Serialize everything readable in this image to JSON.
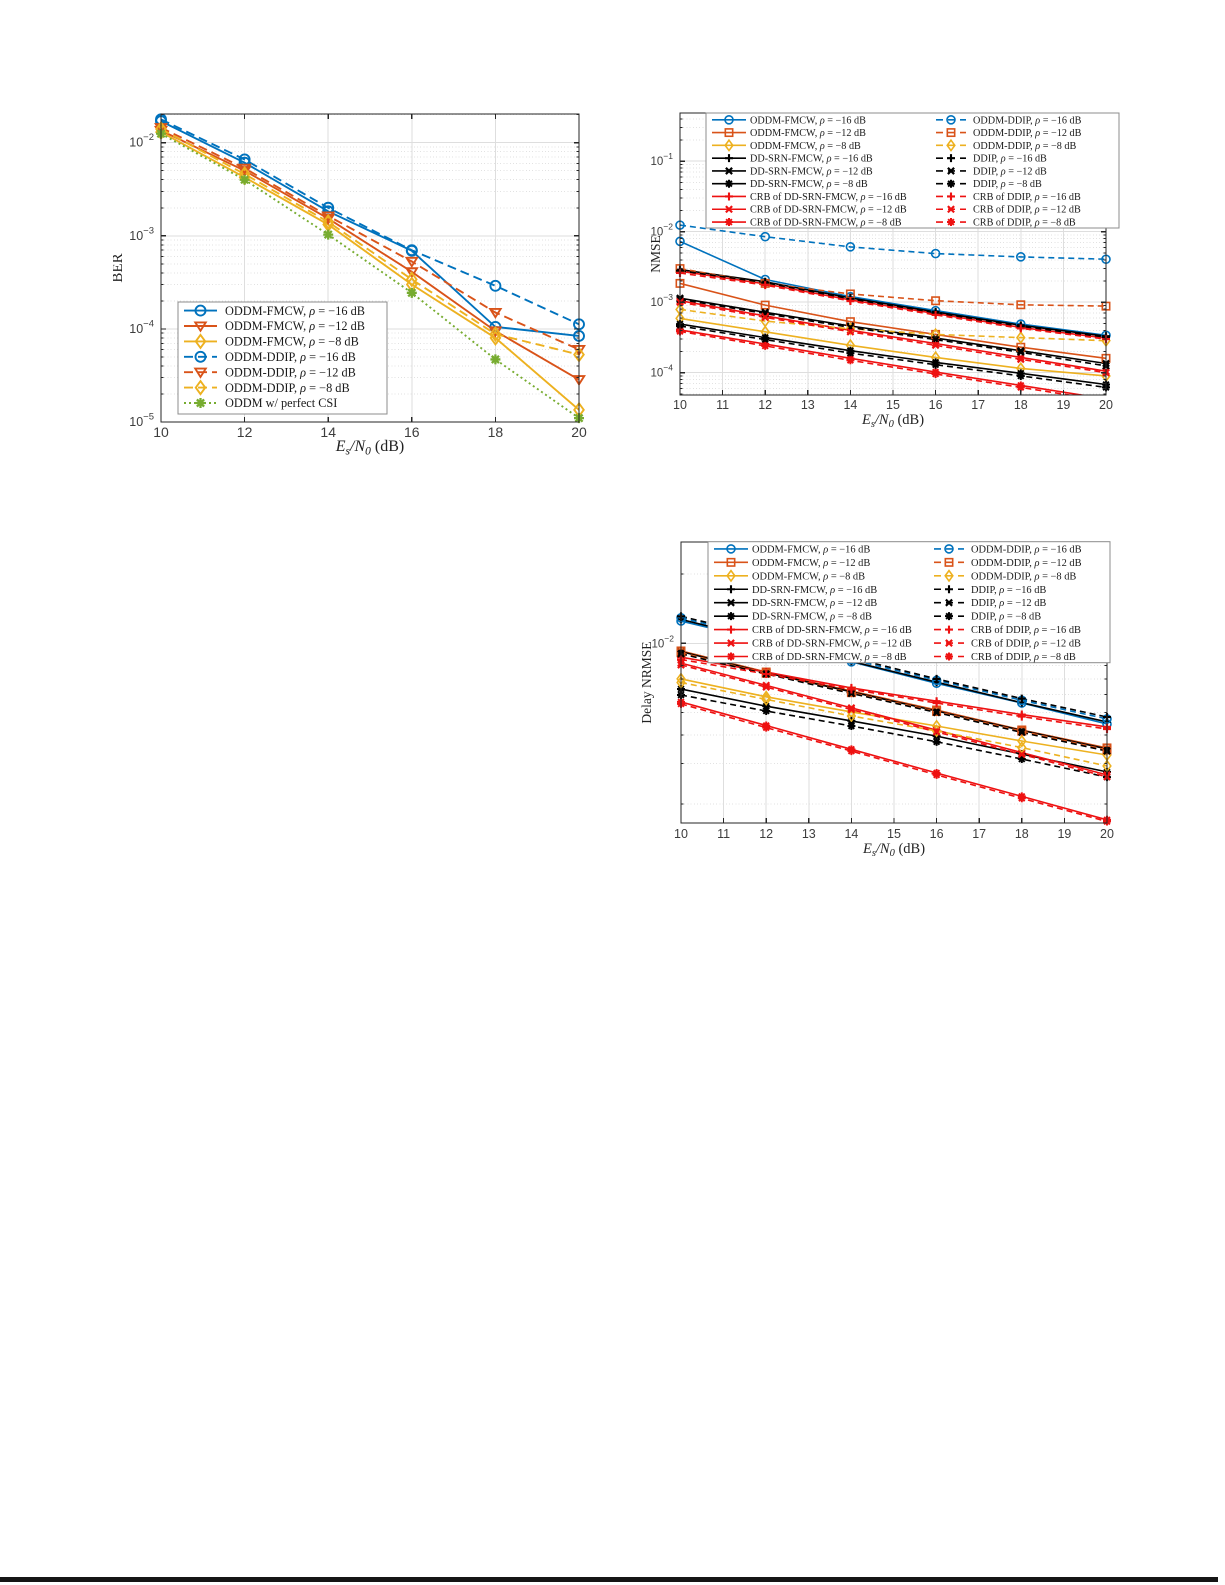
{
  "page": {
    "background": "#ffffff",
    "footer_bar_color": "#151515"
  },
  "palette": {
    "blue": "#0072BD",
    "orange": "#D95319",
    "yellow": "#EDB120",
    "green": "#77AC30",
    "red": "#EE1111",
    "black": "#000000",
    "axis": "#262626",
    "tick_text": "#3d3d3d",
    "grid_major": "#dedede",
    "grid_minor": "#cfcfcf",
    "legend_border": "#8c8c8c"
  },
  "chart_data": [
    {
      "id": "ber",
      "type": "line",
      "title": "",
      "xlabel_math": "E_s/N_0",
      "xlabel_plain": " (dB)",
      "ylabel": "BER",
      "xlim": [
        10,
        20
      ],
      "x_ticks": [
        10,
        12,
        14,
        16,
        18,
        20
      ],
      "ylog_range": [
        -5,
        -1.692
      ],
      "y_labeled_exponents": [
        -2,
        -3,
        -4,
        -5
      ],
      "grid": "on",
      "legend_location": "southwest",
      "legend_columns": 1,
      "x": [
        10,
        12,
        14,
        16,
        18,
        20
      ],
      "series": [
        {
          "name": "ODDM-FMCW, ρ = −16 dB",
          "color": "blue",
          "style": "solid",
          "marker": "circle",
          "values": [
            0.017,
            0.0061,
            0.00183,
            0.00069,
            0.000105,
            8.4e-05
          ]
        },
        {
          "name": "ODDM-FMCW, ρ = −12 dB",
          "color": "orange",
          "style": "solid",
          "marker": "triangle-down",
          "values": [
            0.0135,
            0.005,
            0.00153,
            0.00041,
            9.5e-05,
            2.85e-05
          ]
        },
        {
          "name": "ODDM-FMCW, ρ = −8 dB",
          "color": "yellow",
          "style": "solid",
          "marker": "diamond",
          "values": [
            0.013,
            0.00425,
            0.00132,
            0.0003,
            8e-05,
            1.35e-05
          ]
        },
        {
          "name": "ODDM-DDIP, ρ = −16 dB",
          "color": "blue",
          "style": "dashed",
          "marker": "circle",
          "values": [
            0.0178,
            0.0066,
            0.002,
            0.0007,
            0.00029,
            0.000112
          ]
        },
        {
          "name": "ODDM-DDIP, ρ = −12 dB",
          "color": "orange",
          "style": "dashed",
          "marker": "triangle-down",
          "values": [
            0.0145,
            0.0053,
            0.00163,
            0.00053,
            0.00015,
            6e-05
          ]
        },
        {
          "name": "ODDM-DDIP, ρ = −8 dB",
          "color": "yellow",
          "style": "dashed",
          "marker": "diamond",
          "values": [
            0.014,
            0.0046,
            0.00141,
            0.00034,
            8.8e-05,
            5.3e-05
          ]
        },
        {
          "name": "ODDM w/ perfect CSI",
          "color": "green",
          "style": "dotted",
          "marker": "asterisk",
          "values": [
            0.0125,
            0.004,
            0.00103,
            0.000244,
            4.7e-05,
            1.1e-05
          ]
        }
      ]
    },
    {
      "id": "nmse",
      "type": "line",
      "title": "",
      "xlabel_math": "E_s/N_0",
      "xlabel_plain": " (dB)",
      "ylabel": "NMSE",
      "xlim": [
        10,
        20
      ],
      "x_ticks": [
        10,
        11,
        12,
        13,
        14,
        15,
        16,
        17,
        18,
        19,
        20
      ],
      "ylog_range": [
        -4.316,
        -0.316
      ],
      "y_labeled_exponents": [
        -1,
        -2,
        -3,
        -4
      ],
      "grid": "on",
      "legend_location": "north",
      "legend_columns": 2,
      "x": [
        10,
        12,
        14,
        16,
        18,
        20
      ],
      "series": [
        {
          "name": "ODDM-FMCW, ρ = −16 dB",
          "color": "blue",
          "style": "solid",
          "marker": "circle",
          "values": [
            0.0073,
            0.0021,
            0.0012,
            0.00076,
            0.00049,
            0.00034
          ]
        },
        {
          "name": "ODDM-FMCW, ρ = −12 dB",
          "color": "orange",
          "style": "solid",
          "marker": "square",
          "values": [
            0.00185,
            0.00091,
            0.00053,
            0.00035,
            0.00023,
            0.00016
          ]
        },
        {
          "name": "ODDM-FMCW, ρ = −8 dB",
          "color": "yellow",
          "style": "solid",
          "marker": "diamond",
          "values": [
            0.00059,
            0.00038,
            0.000245,
            0.000165,
            0.000115,
            9e-05
          ]
        },
        {
          "name": "DD-SRN-FMCW, ρ = −16 dB",
          "color": "black",
          "style": "solid",
          "marker": "plus",
          "values": [
            0.0029,
            0.00195,
            0.00115,
            0.00073,
            0.00047,
            0.00033
          ]
        },
        {
          "name": "DD-SRN-FMCW, ρ = −12 dB",
          "color": "black",
          "style": "solid",
          "marker": "x",
          "values": [
            0.00114,
            0.00072,
            0.00046,
            0.00031,
            0.000205,
            0.000135
          ]
        },
        {
          "name": "DD-SRN-FMCW, ρ = −8 dB",
          "color": "black",
          "style": "solid",
          "marker": "asterisk",
          "values": [
            0.00049,
            0.000315,
            0.000205,
            0.00014,
            9.8e-05,
            6.8e-05
          ]
        },
        {
          "name": "CRB of DD-SRN-FMCW, ρ = −16 dB",
          "color": "red",
          "style": "solid",
          "marker": "plus",
          "values": [
            0.00275,
            0.00182,
            0.00108,
            0.00069,
            0.00044,
            0.00031
          ]
        },
        {
          "name": "CRB of DD-SRN-FMCW, ρ = −12 dB",
          "color": "red",
          "style": "solid",
          "marker": "x",
          "values": [
            0.00105,
            0.00064,
            0.0004,
            0.00026,
            0.000165,
            0.000105
          ]
        },
        {
          "name": "CRB of DD-SRN-FMCW, ρ = −8 dB",
          "color": "red",
          "style": "solid",
          "marker": "asterisk",
          "values": [
            0.000405,
            0.000255,
            0.00016,
            0.000102,
            6.6e-05,
            4.25e-05
          ]
        },
        {
          "name": "ODDM-DDIP, ρ = −16 dB",
          "color": "blue",
          "style": "dashed",
          "marker": "circle",
          "values": [
            0.0124,
            0.0085,
            0.0061,
            0.0049,
            0.0044,
            0.00407
          ]
        },
        {
          "name": "ODDM-DDIP, ρ = −12 dB",
          "color": "orange",
          "style": "dashed",
          "marker": "square",
          "values": [
            0.003,
            0.00185,
            0.00131,
            0.00105,
            0.00092,
            0.00088
          ]
        },
        {
          "name": "ODDM-DDIP, ρ = −8 dB",
          "color": "yellow",
          "style": "dashed",
          "marker": "diamond",
          "values": [
            0.00079,
            0.00054,
            0.00042,
            0.00035,
            0.000315,
            0.000285
          ]
        },
        {
          "name": "DDIP, ρ = −16 dB",
          "color": "black",
          "style": "dashed",
          "marker": "plus",
          "values": [
            0.0028,
            0.0019,
            0.00112,
            0.00071,
            0.000455,
            0.00032
          ]
        },
        {
          "name": "DDIP, ρ = −12 dB",
          "color": "black",
          "style": "dashed",
          "marker": "x",
          "values": [
            0.0011,
            0.00069,
            0.00044,
            0.000295,
            0.000195,
            0.000125
          ]
        },
        {
          "name": "DDIP, ρ = −8 dB",
          "color": "black",
          "style": "dashed",
          "marker": "asterisk",
          "values": [
            0.00046,
            0.000295,
            0.00019,
            0.00013,
            9e-05,
            6.2e-05
          ]
        },
        {
          "name": "CRB of DDIP, ρ = −16 dB",
          "color": "red",
          "style": "dashed",
          "marker": "plus",
          "values": [
            0.0026,
            0.00175,
            0.00104,
            0.00066,
            0.000425,
            0.0003
          ]
        },
        {
          "name": "CRB of DDIP, ρ = −12 dB",
          "color": "red",
          "style": "dashed",
          "marker": "x",
          "values": [
            0.001,
            0.00061,
            0.00038,
            0.000245,
            0.000155,
            0.0001
          ]
        },
        {
          "name": "CRB of DDIP, ρ = −8 dB",
          "color": "red",
          "style": "dashed",
          "marker": "asterisk",
          "values": [
            0.000385,
            0.00024,
            0.00015,
            9.6e-05,
            6.2e-05,
            4e-05
          ]
        }
      ]
    },
    {
      "id": "delay-nrmse",
      "type": "line",
      "title": "",
      "xlabel_math": "E_s/N_0",
      "xlabel_plain": " (dB)",
      "ylabel": "Delay NRMSE",
      "xlim": [
        10,
        20
      ],
      "x_ticks": [
        10,
        11,
        12,
        13,
        14,
        15,
        16,
        17,
        18,
        19,
        20
      ],
      "ylog_range": [
        -2.781,
        -1.56
      ],
      "y_labeled_exponents": [
        -2
      ],
      "grid": "on",
      "legend_location": "north",
      "legend_columns": 2,
      "x": [
        10,
        12,
        14,
        16,
        18,
        20
      ],
      "series": [
        {
          "name": "ODDM-FMCW, ρ = −16 dB",
          "color": "blue",
          "style": "solid",
          "marker": "circle",
          "values": [
            0.0125,
            0.0102,
            0.0083,
            0.0067,
            0.0055,
            0.00446
          ]
        },
        {
          "name": "ODDM-FMCW, ρ = −12 dB",
          "color": "orange",
          "style": "solid",
          "marker": "square",
          "values": [
            0.00926,
            0.0075,
            0.0062,
            0.00513,
            0.0042,
            0.00351
          ]
        },
        {
          "name": "ODDM-FMCW, ρ = −8 dB",
          "color": "yellow",
          "style": "solid",
          "marker": "diamond",
          "values": [
            0.007,
            0.00585,
            0.00503,
            0.00437,
            0.00376,
            0.00327
          ]
        },
        {
          "name": "DD-SRN-FMCW, ρ = −16 dB",
          "color": "black",
          "style": "solid",
          "marker": "plus",
          "values": [
            0.0127,
            0.0103,
            0.00835,
            0.00677,
            0.00552,
            0.00455
          ]
        },
        {
          "name": "DD-SRN-FMCW, ρ = −12 dB",
          "color": "black",
          "style": "solid",
          "marker": "x",
          "values": [
            0.0092,
            0.00745,
            0.00615,
            0.00508,
            0.00418,
            0.00347
          ]
        },
        {
          "name": "DD-SRN-FMCW, ρ = −8 dB",
          "color": "black",
          "style": "solid",
          "marker": "asterisk",
          "values": [
            0.00633,
            0.00533,
            0.0046,
            0.00395,
            0.0033,
            0.00276
          ]
        },
        {
          "name": "CRB of DD-SRN-FMCW, ρ = −16 dB",
          "color": "red",
          "style": "solid",
          "marker": "plus",
          "values": [
            0.0087,
            0.0075,
            0.0064,
            0.0056,
            0.0049,
            0.00433
          ]
        },
        {
          "name": "CRB of DD-SRN-FMCW, ρ = −12 dB",
          "color": "red",
          "style": "solid",
          "marker": "x",
          "values": [
            0.0082,
            0.00656,
            0.00524,
            0.00419,
            0.00335,
            0.00268
          ]
        },
        {
          "name": "CRB of DD-SRN-FMCW, ρ = −8 dB",
          "color": "red",
          "style": "solid",
          "marker": "asterisk",
          "values": [
            0.00556,
            0.00439,
            0.00346,
            0.00273,
            0.00216,
            0.00171
          ]
        },
        {
          "name": "ODDM-DDIP, ρ = −16 dB",
          "color": "blue",
          "style": "dashed",
          "marker": "circle",
          "values": [
            0.0129,
            0.0105,
            0.0085,
            0.0069,
            0.00565,
            0.00469
          ]
        },
        {
          "name": "ODDM-DDIP, ρ = −12 dB",
          "color": "orange",
          "style": "dashed",
          "marker": "square",
          "values": [
            0.0091,
            0.0074,
            0.0061,
            0.00505,
            0.00415,
            0.00344
          ]
        },
        {
          "name": "ODDM-DDIP, ρ = −8 dB",
          "color": "yellow",
          "style": "dashed",
          "marker": "diamond",
          "values": [
            0.00675,
            0.0057,
            0.00483,
            0.00416,
            0.00352,
            0.00293
          ]
        },
        {
          "name": "DDIP, ρ = −16 dB",
          "color": "black",
          "style": "dashed",
          "marker": "plus",
          "values": [
            0.0131,
            0.0107,
            0.00865,
            0.007,
            0.00575,
            0.00478
          ]
        },
        {
          "name": "DDIP, ρ = −12 dB",
          "color": "black",
          "style": "dashed",
          "marker": "x",
          "values": [
            0.009,
            0.00735,
            0.00605,
            0.005,
            0.0041,
            0.0034
          ]
        },
        {
          "name": "DDIP, ρ = −8 dB",
          "color": "black",
          "style": "dashed",
          "marker": "asterisk",
          "values": [
            0.00596,
            0.00508,
            0.00437,
            0.00373,
            0.00314,
            0.00262
          ]
        },
        {
          "name": "CRB of DDIP, ρ = −16 dB",
          "color": "red",
          "style": "dashed",
          "marker": "plus",
          "values": [
            0.0085,
            0.00735,
            0.0063,
            0.0055,
            0.0048,
            0.00424
          ]
        },
        {
          "name": "CRB of DDIP, ρ = −12 dB",
          "color": "red",
          "style": "dashed",
          "marker": "x",
          "values": [
            0.00805,
            0.00645,
            0.00515,
            0.00412,
            0.00329,
            0.00263
          ]
        },
        {
          "name": "CRB of DDIP, ρ = −8 dB",
          "color": "red",
          "style": "dashed",
          "marker": "asterisk",
          "values": [
            0.00545,
            0.0043,
            0.0034,
            0.00268,
            0.00212,
            0.00168
          ]
        }
      ]
    }
  ]
}
